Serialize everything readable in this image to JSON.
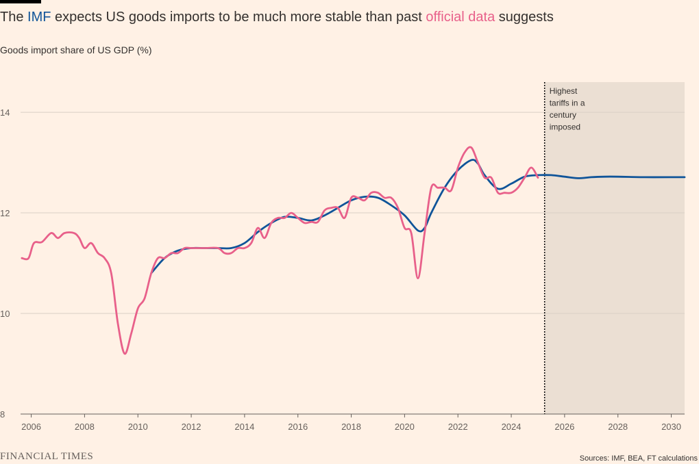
{
  "header": {
    "title_pre": "The ",
    "title_imf": "IMF",
    "title_mid": " expects US goods imports to be much more stable than past ",
    "title_official": "official data",
    "title_post": " suggests",
    "subtitle": "Goods import share of US GDP (%)"
  },
  "footer": {
    "brand": "FINANCIAL TIMES",
    "source": "Sources: IMF, BEA, FT calculations"
  },
  "colors": {
    "background": "#fff1e5",
    "imf": "#0f5499",
    "official": "#e8608a",
    "shade": "#ebdfd3",
    "grid": "#d9cfc5"
  },
  "chart_data": {
    "type": "line",
    "xlim": [
      2005.6,
      2030.5
    ],
    "ylim": [
      8,
      14.6
    ],
    "x_ticks": [
      2006,
      2008,
      2010,
      2012,
      2014,
      2016,
      2018,
      2020,
      2022,
      2024,
      2026,
      2028,
      2030
    ],
    "y_ticks": [
      8,
      10,
      12,
      14
    ],
    "grid": "horizontal",
    "shaded_region": {
      "from": 2025.25,
      "to": 2030.5
    },
    "annotation": {
      "x": 2025.25,
      "lines": [
        "Highest",
        "tariffs in a",
        "century",
        "imposed"
      ]
    },
    "series": [
      {
        "name": "IMF",
        "color": "#0f5499",
        "points": [
          [
            2010.5,
            10.8
          ],
          [
            2011,
            11.1
          ],
          [
            2011.5,
            11.25
          ],
          [
            2012,
            11.3
          ],
          [
            2012.5,
            11.3
          ],
          [
            2013,
            11.3
          ],
          [
            2013.5,
            11.3
          ],
          [
            2014,
            11.4
          ],
          [
            2014.5,
            11.62
          ],
          [
            2015,
            11.8
          ],
          [
            2015.5,
            11.92
          ],
          [
            2016,
            11.9
          ],
          [
            2016.5,
            11.85
          ],
          [
            2017,
            11.95
          ],
          [
            2017.5,
            12.1
          ],
          [
            2018,
            12.25
          ],
          [
            2018.5,
            12.32
          ],
          [
            2019,
            12.3
          ],
          [
            2019.5,
            12.15
          ],
          [
            2020,
            11.95
          ],
          [
            2020.5,
            11.65
          ],
          [
            2020.75,
            11.7
          ],
          [
            2021,
            12.0
          ],
          [
            2021.5,
            12.5
          ],
          [
            2022,
            12.85
          ],
          [
            2022.5,
            13.05
          ],
          [
            2022.75,
            12.98
          ],
          [
            2023,
            12.75
          ],
          [
            2023.5,
            12.48
          ],
          [
            2024,
            12.58
          ],
          [
            2024.5,
            12.72
          ],
          [
            2025,
            12.75
          ],
          [
            2025.5,
            12.75
          ],
          [
            2026,
            12.72
          ],
          [
            2026.5,
            12.69
          ],
          [
            2027,
            12.71
          ],
          [
            2027.5,
            12.72
          ],
          [
            2028,
            12.72
          ],
          [
            2029,
            12.71
          ],
          [
            2030,
            12.71
          ],
          [
            2030.5,
            12.71
          ]
        ]
      },
      {
        "name": "official data",
        "color": "#e8608a",
        "points": [
          [
            2005.65,
            11.1
          ],
          [
            2005.9,
            11.1
          ],
          [
            2006.1,
            11.4
          ],
          [
            2006.4,
            11.42
          ],
          [
            2006.75,
            11.6
          ],
          [
            2007,
            11.5
          ],
          [
            2007.25,
            11.6
          ],
          [
            2007.6,
            11.6
          ],
          [
            2007.8,
            11.5
          ],
          [
            2008,
            11.3
          ],
          [
            2008.25,
            11.4
          ],
          [
            2008.5,
            11.2
          ],
          [
            2008.75,
            11.1
          ],
          [
            2009,
            10.8
          ],
          [
            2009.25,
            9.8
          ],
          [
            2009.5,
            9.2
          ],
          [
            2009.75,
            9.6
          ],
          [
            2010,
            10.1
          ],
          [
            2010.25,
            10.3
          ],
          [
            2010.5,
            10.8
          ],
          [
            2010.75,
            11.1
          ],
          [
            2011,
            11.1
          ],
          [
            2011.25,
            11.2
          ],
          [
            2011.5,
            11.2
          ],
          [
            2011.75,
            11.3
          ],
          [
            2012,
            11.3
          ],
          [
            2012.5,
            11.3
          ],
          [
            2013,
            11.3
          ],
          [
            2013.25,
            11.2
          ],
          [
            2013.5,
            11.2
          ],
          [
            2013.75,
            11.3
          ],
          [
            2014,
            11.3
          ],
          [
            2014.25,
            11.4
          ],
          [
            2014.5,
            11.7
          ],
          [
            2014.75,
            11.5
          ],
          [
            2015,
            11.8
          ],
          [
            2015.25,
            11.9
          ],
          [
            2015.5,
            11.9
          ],
          [
            2015.75,
            12.0
          ],
          [
            2016,
            11.9
          ],
          [
            2016.25,
            11.8
          ],
          [
            2016.5,
            11.82
          ],
          [
            2016.75,
            11.82
          ],
          [
            2017,
            12.05
          ],
          [
            2017.25,
            12.1
          ],
          [
            2017.5,
            12.1
          ],
          [
            2017.75,
            11.9
          ],
          [
            2018,
            12.3
          ],
          [
            2018.25,
            12.3
          ],
          [
            2018.5,
            12.25
          ],
          [
            2018.75,
            12.4
          ],
          [
            2019,
            12.4
          ],
          [
            2019.25,
            12.3
          ],
          [
            2019.5,
            12.3
          ],
          [
            2019.75,
            12.1
          ],
          [
            2020,
            11.7
          ],
          [
            2020.25,
            11.6
          ],
          [
            2020.5,
            10.7
          ],
          [
            2020.75,
            11.6
          ],
          [
            2021,
            12.5
          ],
          [
            2021.25,
            12.5
          ],
          [
            2021.5,
            12.5
          ],
          [
            2021.75,
            12.45
          ],
          [
            2022,
            12.9
          ],
          [
            2022.25,
            13.2
          ],
          [
            2022.5,
            13.3
          ],
          [
            2022.75,
            13.0
          ],
          [
            2023,
            12.7
          ],
          [
            2023.25,
            12.7
          ],
          [
            2023.5,
            12.4
          ],
          [
            2023.75,
            12.4
          ],
          [
            2024,
            12.4
          ],
          [
            2024.25,
            12.5
          ],
          [
            2024.5,
            12.7
          ],
          [
            2024.75,
            12.9
          ],
          [
            2025,
            12.7
          ]
        ]
      }
    ]
  }
}
